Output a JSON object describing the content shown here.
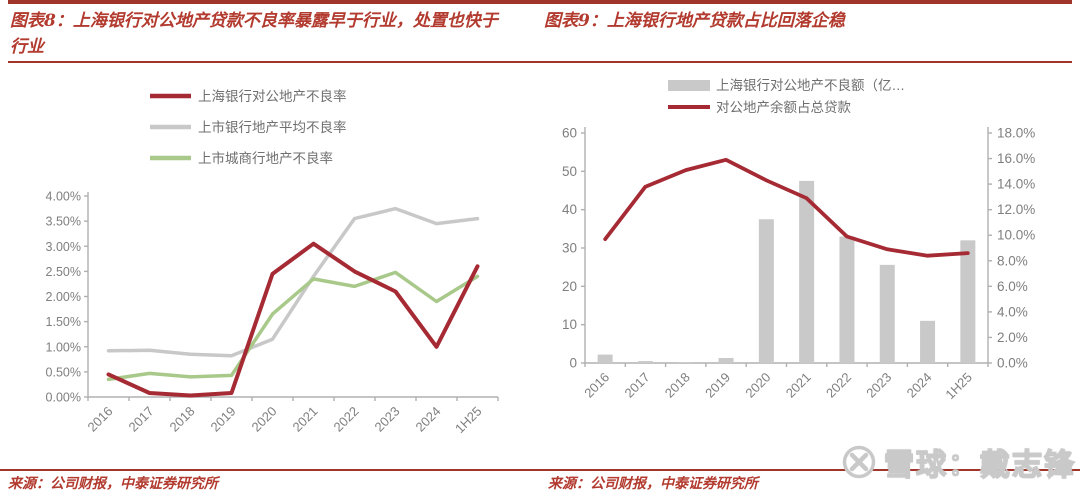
{
  "colors": {
    "brand_red": "#A0352B",
    "title_red": "#B23A2E",
    "line_red": "#A52A33",
    "series_gray": "#C8C8C8",
    "series_green": "#A8C98A",
    "bar_gray": "#C9C9C9",
    "axis_gray": "#B0B0B0",
    "label_gray": "#7F7F7F",
    "legend_text_gray": "#6F6F6F"
  },
  "header": {
    "left_title": "图表8：上海银行对公地产贷款不良率暴露早于行业，处置也快于行业",
    "right_title": "图表9：上海银行地产贷款占比回落企稳"
  },
  "footer": {
    "left_source": "来源：公司财报，中泰证券研究所",
    "right_source": "来源：公司财报，中泰证券研究所",
    "watermark_text": "雪球：戴志锋",
    "watermark_icon": "xueqiu-logo"
  },
  "chart_data": [
    {
      "type": "line",
      "title": "图表8：上海银行对公地产贷款不良率暴露早于行业，处置也快于行业",
      "categories": [
        "2016",
        "2017",
        "2018",
        "2019",
        "2020",
        "2021",
        "2022",
        "2023",
        "2024",
        "1H25"
      ],
      "series": [
        {
          "name": "上海银行对公地产不良率",
          "color": "#A52A33",
          "values": [
            0.45,
            0.08,
            0.03,
            0.08,
            2.45,
            3.05,
            2.5,
            2.1,
            1.0,
            2.6
          ]
        },
        {
          "name": "上市银行地产平均不良率",
          "color": "#C8C8C8",
          "values": [
            0.92,
            0.93,
            0.85,
            0.82,
            1.15,
            2.4,
            3.55,
            3.75,
            3.45,
            3.55
          ]
        },
        {
          "name": "上市城商行地产不良率",
          "color": "#A8C98A",
          "values": [
            0.35,
            0.47,
            0.4,
            0.43,
            1.65,
            2.35,
            2.2,
            2.48,
            1.9,
            2.4
          ]
        }
      ],
      "ylim": [
        0,
        4
      ],
      "ystep": 0.5,
      "ytick_labels": [
        "0.00%",
        "0.50%",
        "1.00%",
        "1.50%",
        "2.00%",
        "2.50%",
        "3.00%",
        "3.50%",
        "4.00%"
      ],
      "grid": false,
      "legend_position": "top"
    },
    {
      "type": "bar+line",
      "title": "图表9：上海银行地产贷款占比回落企稳",
      "categories": [
        "2016",
        "2017",
        "2018",
        "2019",
        "2020",
        "2021",
        "2022",
        "2023",
        "2024",
        "1H25"
      ],
      "bar_series": {
        "name": "上海银行对公地产不良额（亿…",
        "color": "#C9C9C9",
        "axis": "left",
        "values": [
          2.2,
          0.5,
          0.2,
          1.3,
          37.5,
          47.5,
          33.0,
          25.6,
          11.0,
          32.0
        ]
      },
      "line_series": {
        "name": "对公地产余额占总贷款",
        "color": "#A52A33",
        "axis": "right",
        "values": [
          9.7,
          13.8,
          15.1,
          15.9,
          14.3,
          12.9,
          9.9,
          8.9,
          8.4,
          8.6
        ]
      },
      "left_axis": {
        "max": 60,
        "step": 10,
        "tick_labels": [
          "0",
          "10",
          "20",
          "30",
          "40",
          "50",
          "60"
        ]
      },
      "right_axis": {
        "max": 18,
        "step": 2,
        "tick_labels": [
          "0.0%",
          "2.0%",
          "4.0%",
          "6.0%",
          "8.0%",
          "10.0%",
          "12.0%",
          "14.0%",
          "16.0%",
          "18.0%"
        ]
      },
      "grid": false,
      "legend_position": "top"
    }
  ]
}
